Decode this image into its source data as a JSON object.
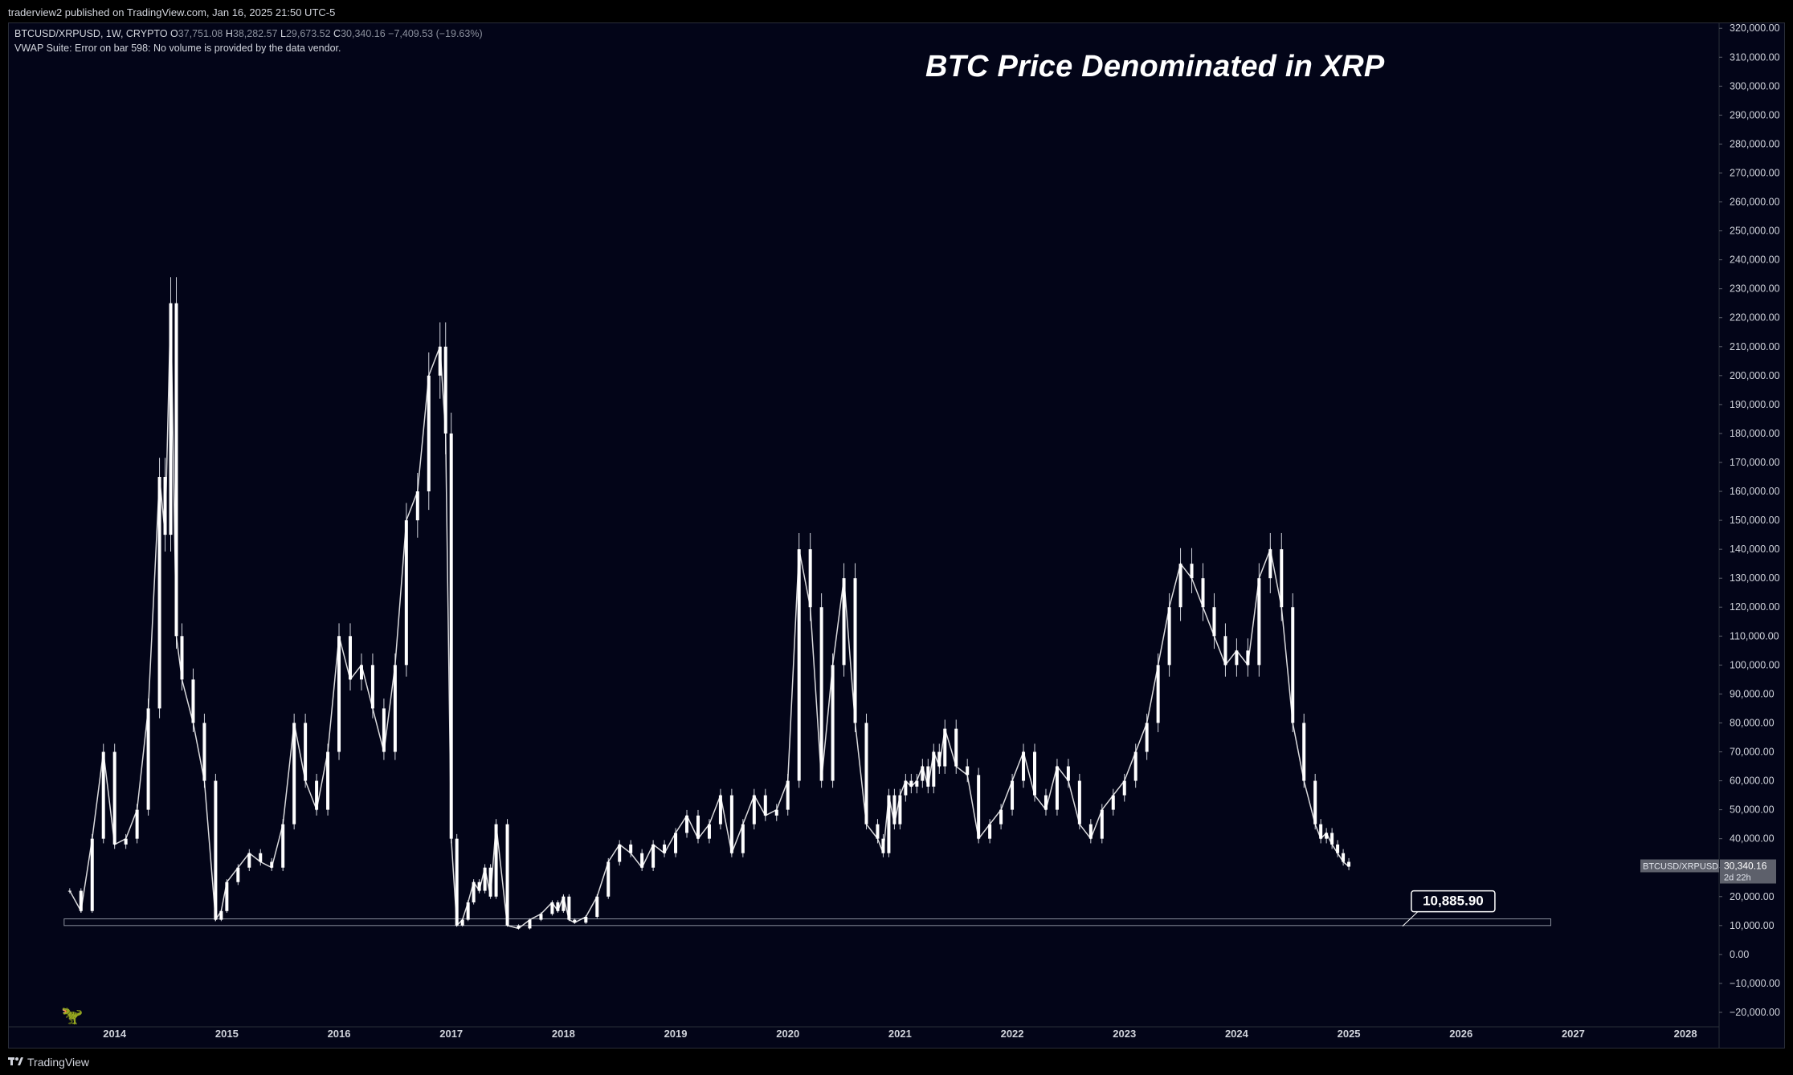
{
  "header": {
    "publisher_line": "traderview2 published on TradingView.com, Jan 16, 2025 21:50 UTC-5"
  },
  "legend": {
    "symbol": "BTCUSD/XRPUSD, 1W, CRYPTO",
    "open_label": "O",
    "open_value": "37,751.08",
    "high_label": "H",
    "high_value": "38,282.57",
    "low_label": "L",
    "low_value": "29,673.52",
    "close_label": "C",
    "close_value": "30,340.16",
    "change": "−7,409.53 (−19.63%)",
    "vwap_message": "VWAP Suite: Error on bar 598: No volume is provided by the data vendor."
  },
  "price_label": {
    "symbol": "BTCUSD/XRPUSD",
    "price": "30,340.16",
    "countdown": "2d 22h"
  },
  "footer": {
    "brand": "TradingView"
  },
  "colors": {
    "background": "#030518",
    "candle": "#ffffff",
    "wick": "#d1d4dc",
    "support_zone_border": "#8a8f9c",
    "annotation_bg": "#030518",
    "price_label_bg": "#5d606b"
  },
  "chart_data": {
    "type": "line",
    "subtype": "candlestick",
    "title": "BTC Price Denominated in XRP",
    "symbol": "BTCUSD/XRPUSD",
    "interval": "1W",
    "ylim": [
      -25000,
      322000
    ],
    "xlim": [
      2013.05,
      2028.3
    ],
    "y_ticks": [
      "320,000.00",
      "310,000.00",
      "300,000.00",
      "290,000.00",
      "280,000.00",
      "270,000.00",
      "260,000.00",
      "250,000.00",
      "240,000.00",
      "230,000.00",
      "220,000.00",
      "210,000.00",
      "200,000.00",
      "190,000.00",
      "180,000.00",
      "170,000.00",
      "160,000.00",
      "150,000.00",
      "140,000.00",
      "130,000.00",
      "120,000.00",
      "110,000.00",
      "100,000.00",
      "90,000.00",
      "80,000.00",
      "70,000.00",
      "60,000.00",
      "50,000.00",
      "40,000.00",
      "30,000.00",
      "20,000.00",
      "10,000.00",
      "0.00",
      "−10,000.00",
      "−20,000.00"
    ],
    "y_tick_values": [
      320000,
      310000,
      300000,
      290000,
      280000,
      270000,
      260000,
      250000,
      240000,
      230000,
      220000,
      210000,
      200000,
      190000,
      180000,
      170000,
      160000,
      150000,
      140000,
      130000,
      120000,
      110000,
      100000,
      90000,
      80000,
      70000,
      60000,
      50000,
      40000,
      30000,
      20000,
      10000,
      0,
      -10000,
      -20000
    ],
    "x_ticks": [
      "2014",
      "2015",
      "2016",
      "2017",
      "2018",
      "2019",
      "2020",
      "2021",
      "2022",
      "2023",
      "2024",
      "2025",
      "2026",
      "2027",
      "2028"
    ],
    "x_tick_values": [
      2014,
      2015,
      2016,
      2017,
      2018,
      2019,
      2020,
      2021,
      2022,
      2023,
      2024,
      2025,
      2026,
      2027,
      2028
    ],
    "grid": false,
    "series": [
      {
        "x": [
          2013.6,
          2013.7,
          2013.8,
          2013.9,
          2014.0,
          2014.1,
          2014.2,
          2014.3,
          2014.4,
          2014.45,
          2014.5,
          2014.55,
          2014.6,
          2014.7,
          2014.8,
          2014.9,
          2014.95,
          2015.0,
          2015.1,
          2015.2,
          2015.3,
          2015.4,
          2015.5,
          2015.6,
          2015.7,
          2015.8,
          2015.9,
          2016.0,
          2016.1,
          2016.2,
          2016.3,
          2016.4,
          2016.5,
          2016.6,
          2016.7,
          2016.8,
          2016.9,
          2016.95,
          2017.0,
          2017.05,
          2017.1,
          2017.15,
          2017.2,
          2017.25,
          2017.3,
          2017.35,
          2017.4,
          2017.5,
          2017.6,
          2017.7,
          2017.8,
          2017.9,
          2017.95,
          2018.0,
          2018.05,
          2018.1,
          2018.2,
          2018.3,
          2018.4,
          2018.5,
          2018.6,
          2018.7,
          2018.8,
          2018.9,
          2019.0,
          2019.1,
          2019.2,
          2019.3,
          2019.4,
          2019.5,
          2019.6,
          2019.7,
          2019.8,
          2019.9,
          2020.0,
          2020.1,
          2020.2,
          2020.3,
          2020.4,
          2020.5,
          2020.6,
          2020.7,
          2020.8,
          2020.85,
          2020.9,
          2020.95,
          2021.0,
          2021.05,
          2021.1,
          2021.15,
          2021.2,
          2021.25,
          2021.3,
          2021.35,
          2021.4,
          2021.5,
          2021.6,
          2021.7,
          2021.8,
          2021.9,
          2022.0,
          2022.1,
          2022.2,
          2022.3,
          2022.4,
          2022.5,
          2022.6,
          2022.7,
          2022.8,
          2022.9,
          2023.0,
          2023.1,
          2023.2,
          2023.3,
          2023.4,
          2023.5,
          2023.6,
          2023.7,
          2023.8,
          2023.9,
          2024.0,
          2024.1,
          2024.2,
          2024.3,
          2024.4,
          2024.5,
          2024.6,
          2024.7,
          2024.75,
          2024.8,
          2024.85,
          2024.9,
          2024.95,
          2025.0
        ],
        "y": [
          22000,
          15000,
          40000,
          70000,
          38000,
          40000,
          50000,
          85000,
          165000,
          145000,
          225000,
          110000,
          95000,
          80000,
          60000,
          12000,
          15000,
          25000,
          30000,
          35000,
          32000,
          30000,
          45000,
          80000,
          60000,
          50000,
          70000,
          110000,
          95000,
          100000,
          85000,
          70000,
          100000,
          150000,
          160000,
          200000,
          210000,
          180000,
          40000,
          10000,
          12000,
          18000,
          25000,
          22000,
          30000,
          20000,
          45000,
          10000,
          9000,
          12000,
          14000,
          18000,
          15000,
          20000,
          12000,
          11000,
          13000,
          20000,
          32000,
          38000,
          35000,
          30000,
          38000,
          35000,
          42000,
          48000,
          40000,
          45000,
          55000,
          35000,
          45000,
          55000,
          48000,
          50000,
          60000,
          140000,
          120000,
          60000,
          100000,
          130000,
          80000,
          45000,
          40000,
          35000,
          55000,
          45000,
          55000,
          60000,
          58000,
          60000,
          65000,
          58000,
          70000,
          65000,
          78000,
          65000,
          62000,
          40000,
          45000,
          50000,
          60000,
          70000,
          55000,
          50000,
          65000,
          60000,
          45000,
          40000,
          50000,
          55000,
          60000,
          70000,
          80000,
          100000,
          120000,
          135000,
          130000,
          120000,
          110000,
          100000,
          105000,
          100000,
          130000,
          140000,
          120000,
          80000,
          60000,
          45000,
          40000,
          42000,
          38000,
          35000,
          32000,
          30340
        ]
      }
    ],
    "annotations": [
      {
        "type": "horizontal_zone",
        "low": 10000,
        "high": 12300,
        "x_start": 2013.55,
        "x_end": 2026.8
      },
      {
        "type": "callout",
        "text": "10,885.90",
        "x": 2025.5,
        "y": 10885.9
      }
    ]
  }
}
